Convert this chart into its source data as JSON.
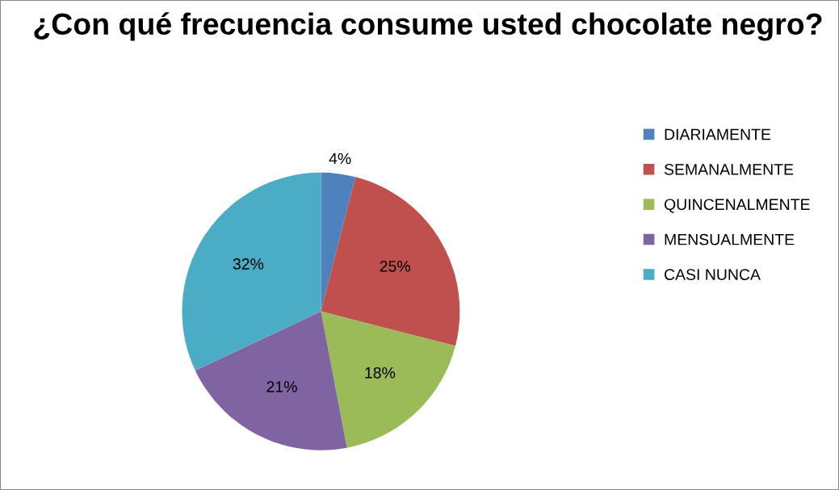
{
  "chart_data": {
    "type": "pie",
    "title": "¿Con qué frecuencia consume usted chocolate negro?",
    "categories": [
      "DIARIAMENTE",
      "SEMANALMENTE",
      "QUINCENALMENTE",
      "MENSUALMENTE",
      "CASI NUNCA"
    ],
    "values": [
      4,
      25,
      18,
      21,
      32
    ],
    "colors": [
      "#4f81bd",
      "#c0504d",
      "#9bbb59",
      "#8064a2",
      "#4bacc6"
    ],
    "value_labels": [
      "4%",
      "25%",
      "18%",
      "21%",
      "32%"
    ],
    "legend": "right"
  }
}
